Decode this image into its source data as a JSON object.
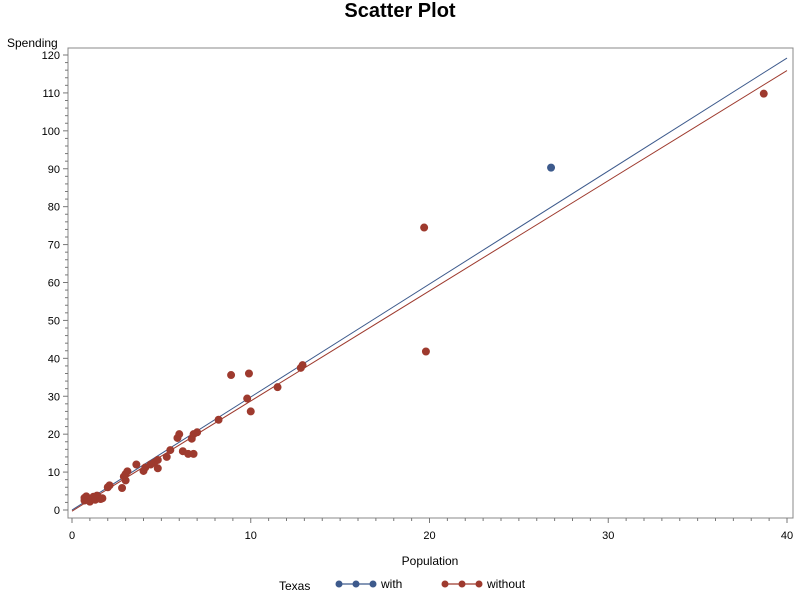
{
  "chart_data": {
    "type": "scatter",
    "title": "Scatter Plot",
    "xlabel": "Population",
    "ylabel": "Spending",
    "xlim": [
      0,
      40
    ],
    "ylim": [
      0,
      120
    ],
    "x_ticks": [
      0,
      10,
      20,
      30,
      40
    ],
    "y_ticks": [
      0,
      10,
      20,
      30,
      40,
      50,
      60,
      70,
      80,
      90,
      100,
      110,
      120
    ],
    "grid": false,
    "legend": {
      "title": "Texas",
      "placement": "bottom",
      "entries": [
        "with",
        "without"
      ]
    },
    "series": [
      {
        "name": "with",
        "color": "#3d5a8c",
        "points": [
          [
            26.8,
            90.3
          ]
        ],
        "fit_line": {
          "intercept": 0.0,
          "slope": 2.98
        }
      },
      {
        "name": "without",
        "color": "#9e3a2e",
        "points": [
          [
            0.7,
            2.5
          ],
          [
            0.7,
            3.2
          ],
          [
            0.8,
            3.6
          ],
          [
            0.9,
            2.8
          ],
          [
            1.0,
            2.2
          ],
          [
            1.1,
            3.0
          ],
          [
            1.2,
            3.5
          ],
          [
            1.3,
            2.7
          ],
          [
            1.4,
            3.8
          ],
          [
            1.5,
            3.3
          ],
          [
            1.6,
            2.9
          ],
          [
            1.7,
            3.1
          ],
          [
            2.0,
            6.0
          ],
          [
            2.1,
            6.5
          ],
          [
            2.8,
            5.8
          ],
          [
            2.9,
            8.8
          ],
          [
            3.0,
            9.5
          ],
          [
            3.0,
            7.8
          ],
          [
            3.1,
            10.2
          ],
          [
            3.6,
            12.0
          ],
          [
            4.0,
            10.3
          ],
          [
            4.1,
            11.2
          ],
          [
            4.4,
            12.0
          ],
          [
            4.6,
            12.5
          ],
          [
            4.8,
            13.2
          ],
          [
            4.8,
            11.0
          ],
          [
            5.3,
            14.0
          ],
          [
            5.5,
            15.8
          ],
          [
            5.9,
            19.0
          ],
          [
            6.0,
            20.0
          ],
          [
            6.2,
            15.5
          ],
          [
            6.5,
            14.8
          ],
          [
            6.7,
            18.8
          ],
          [
            6.8,
            14.8
          ],
          [
            6.8,
            20.0
          ],
          [
            7.0,
            20.5
          ],
          [
            8.2,
            23.8
          ],
          [
            8.9,
            35.6
          ],
          [
            9.8,
            29.4
          ],
          [
            9.9,
            36.0
          ],
          [
            10.0,
            26.0
          ],
          [
            11.5,
            32.4
          ],
          [
            12.8,
            37.5
          ],
          [
            12.9,
            38.2
          ],
          [
            19.7,
            74.5
          ],
          [
            19.8,
            41.8
          ],
          [
            38.7,
            109.8
          ]
        ],
        "fit_line": {
          "intercept": -0.3,
          "slope": 2.905
        }
      }
    ]
  }
}
